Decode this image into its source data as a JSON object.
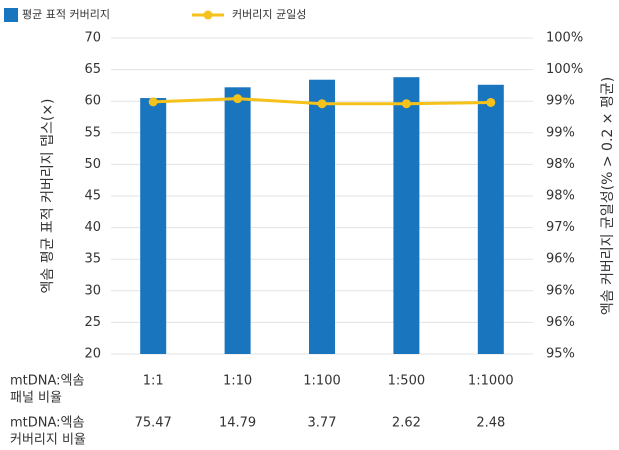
{
  "chart_data": {
    "type": "bar_line",
    "categories": [
      "1:1",
      "1:10",
      "1:100",
      "1:500",
      "1:1000"
    ],
    "category_row_label": [
      "mtDNA:엑솜",
      "패널 비율"
    ],
    "coverage_ratio": {
      "label": [
        "mtDNA:엑솜",
        "커버리지 비율"
      ],
      "values": [
        75.47,
        14.79,
        3.77,
        2.62,
        2.48
      ]
    },
    "series": [
      {
        "name": "평균 표적 커버리지",
        "color": "#1a75bf",
        "type": "bar",
        "values": [
          60.5,
          62.2,
          63.4,
          63.8,
          62.6
        ]
      },
      {
        "name": "커버리지 균일성",
        "color": "#f5c21b",
        "type": "line",
        "axis": "y2",
        "values": [
          98.99,
          99.04,
          98.96,
          98.96,
          98.98
        ]
      }
    ],
    "ylabel": "엑솜 평균 표적 커버리지 뎁스(×)",
    "y2label": "엑솜 커버리지 균일성(% > 0.2 × 평균)",
    "ylim": [
      20,
      70
    ],
    "yticks": [
      20,
      25,
      30,
      35,
      40,
      45,
      50,
      55,
      60,
      65,
      70
    ],
    "y2lim": [
      95,
      100
    ],
    "y2ticks": [
      {
        "value": 95,
        "label": "95%"
      },
      {
        "value": 95.5,
        "label": "96%"
      },
      {
        "value": 96,
        "label": "96%"
      },
      {
        "value": 96.5,
        "label": "96%"
      },
      {
        "value": 97,
        "label": "97%"
      },
      {
        "value": 97.5,
        "label": "98%"
      },
      {
        "value": 98,
        "label": "98%"
      },
      {
        "value": 98.5,
        "label": "99%"
      },
      {
        "value": 99,
        "label": "99%"
      },
      {
        "value": 99.5,
        "label": "100%"
      },
      {
        "value": 100,
        "label": "100%"
      }
    ],
    "grid": true,
    "legend": "top-left"
  }
}
